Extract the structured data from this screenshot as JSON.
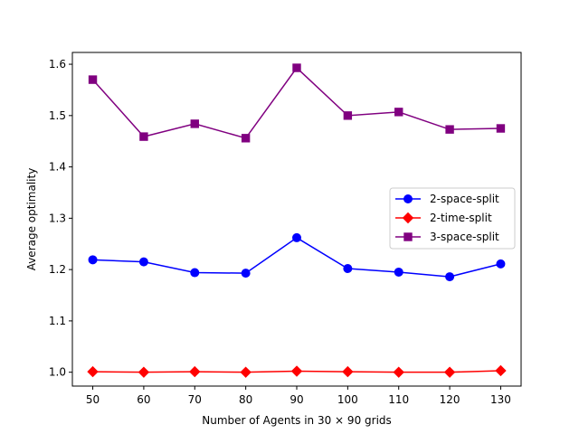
{
  "chart_data": {
    "type": "line",
    "title": "",
    "xlabel": "Number of Agents in 30 × 90 grids",
    "ylabel": "Average optimality",
    "x": [
      50,
      60,
      70,
      80,
      90,
      100,
      110,
      120,
      130
    ],
    "xlim": [
      46,
      134
    ],
    "ylim": [
      0.973,
      1.623
    ],
    "xticks": [
      "50",
      "60",
      "70",
      "80",
      "90",
      "100",
      "110",
      "120",
      "130"
    ],
    "yticks": [
      "1.0",
      "1.1",
      "1.2",
      "1.3",
      "1.4",
      "1.5",
      "1.6"
    ],
    "grid": false,
    "legend_position": "center-right",
    "series": [
      {
        "name": "2-space-split",
        "color": "#0000ff",
        "marker": "circle",
        "values": [
          1.219,
          1.215,
          1.194,
          1.193,
          1.262,
          1.202,
          1.195,
          1.186,
          1.211
        ]
      },
      {
        "name": "2-time-split",
        "color": "#ff0000",
        "marker": "diamond",
        "values": [
          1.001,
          1.0,
          1.001,
          1.0,
          1.002,
          1.001,
          1.0,
          1.0,
          1.003
        ]
      },
      {
        "name": "3-space-split",
        "color": "#800080",
        "marker": "square",
        "values": [
          1.57,
          1.459,
          1.484,
          1.456,
          1.593,
          1.5,
          1.507,
          1.473,
          1.475
        ]
      }
    ]
  }
}
